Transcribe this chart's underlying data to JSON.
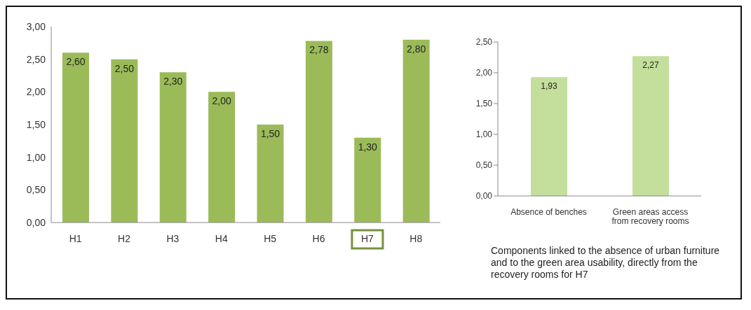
{
  "chart_data": [
    {
      "type": "bar",
      "categories": [
        "H1",
        "H2",
        "H3",
        "H4",
        "H5",
        "H6",
        "H7",
        "H8"
      ],
      "values": [
        2.6,
        2.5,
        2.3,
        2.0,
        1.5,
        2.78,
        1.3,
        2.8
      ],
      "value_labels": [
        "2,60",
        "2,50",
        "2,30",
        "2,00",
        "1,50",
        "2,78",
        "1,30",
        "2,80"
      ],
      "color": "#9bbb59",
      "ylim": [
        0,
        3
      ],
      "yticks": [
        {
          "value": 0,
          "label": "0,00"
        },
        {
          "value": 0.5,
          "label": "0,50"
        },
        {
          "value": 1,
          "label": "1,00"
        },
        {
          "value": 1.5,
          "label": "1,50"
        },
        {
          "value": 2,
          "label": "2,00"
        },
        {
          "value": 2.5,
          "label": "2,50"
        },
        {
          "value": 3,
          "label": "3,00"
        }
      ],
      "grid": false,
      "legend": false
    },
    {
      "type": "bar",
      "categories": [
        "Absence of benches",
        "Green areas access from recovery rooms"
      ],
      "values": [
        1.93,
        2.27
      ],
      "value_labels": [
        "1,93",
        "2,27"
      ],
      "color": "#c3df9b",
      "ylim": [
        0,
        2.5
      ],
      "yticks": [
        {
          "value": 0,
          "label": "0,00"
        },
        {
          "value": 0.5,
          "label": "0,50"
        },
        {
          "value": 1,
          "label": "1,00"
        },
        {
          "value": 1.5,
          "label": "1,50"
        },
        {
          "value": 2,
          "label": "2,00"
        },
        {
          "value": 2.5,
          "label": "2,50"
        }
      ],
      "grid": false,
      "legend": false,
      "annotations": [
        "Components linked to the absence of urban furniture and to the green area usability, directly from the recovery rooms for H7"
      ]
    }
  ]
}
